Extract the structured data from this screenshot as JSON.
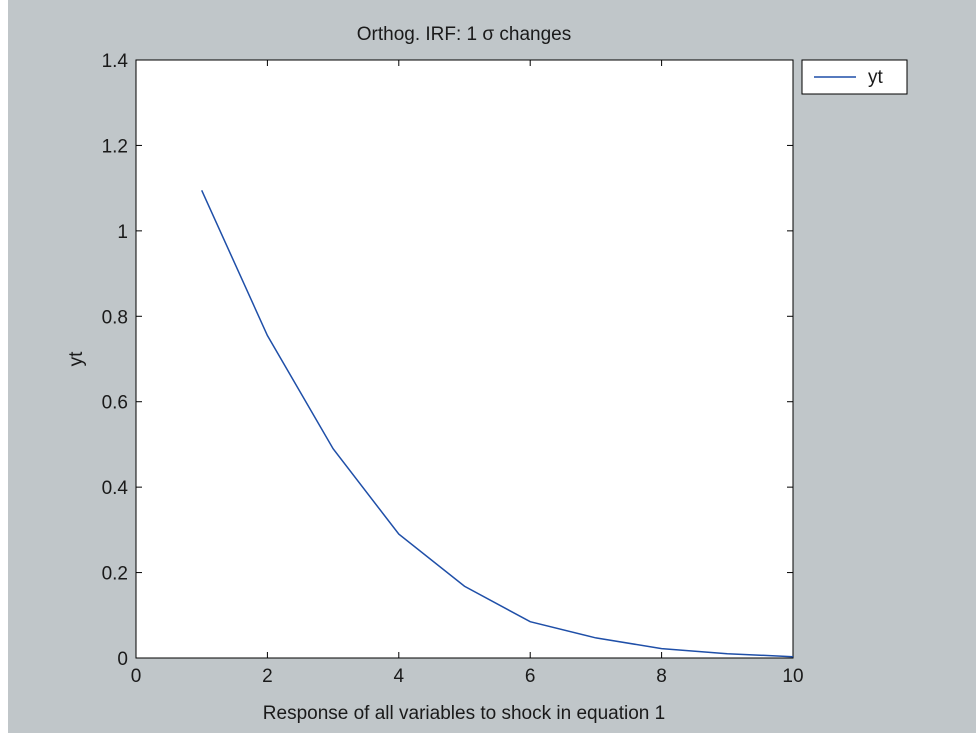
{
  "chart_data": {
    "type": "line",
    "title": "Orthog. IRF: 1 σ changes",
    "xlabel": "Response of all variables to shock in equation 1",
    "ylabel": "yt",
    "xlim": [
      0,
      10
    ],
    "ylim": [
      0,
      1.4
    ],
    "x_ticks": [
      "0",
      "2",
      "4",
      "6",
      "8",
      "10"
    ],
    "y_ticks": [
      "0",
      "0.2",
      "0.4",
      "0.6",
      "0.8",
      "1",
      "1.2",
      "1.4"
    ],
    "grid": false,
    "legend": {
      "position": "outside-top-right",
      "entries": [
        "yt"
      ]
    },
    "series": [
      {
        "name": "yt",
        "color": "#1f4fa8",
        "x": [
          1,
          2,
          3,
          4,
          5,
          6,
          7,
          8,
          9,
          10
        ],
        "y": [
          1.095,
          0.755,
          0.49,
          0.29,
          0.168,
          0.085,
          0.047,
          0.022,
          0.01,
          0.003
        ]
      }
    ]
  }
}
